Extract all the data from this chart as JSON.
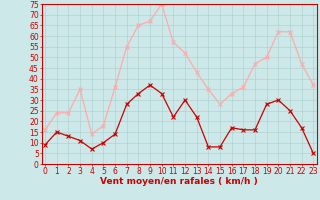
{
  "hours": [
    0,
    1,
    2,
    3,
    4,
    5,
    6,
    7,
    8,
    9,
    10,
    11,
    12,
    13,
    14,
    15,
    16,
    17,
    18,
    19,
    20,
    21,
    22,
    23
  ],
  "wind_avg": [
    9,
    15,
    13,
    11,
    7,
    10,
    14,
    28,
    33,
    37,
    33,
    22,
    30,
    22,
    8,
    8,
    17,
    16,
    16,
    28,
    30,
    25,
    17,
    5
  ],
  "wind_gust": [
    16,
    24,
    24,
    35,
    14,
    18,
    36,
    55,
    65,
    67,
    75,
    57,
    52,
    43,
    35,
    28,
    33,
    36,
    47,
    50,
    62,
    62,
    47,
    37
  ],
  "avg_color": "#cc0000",
  "gust_color": "#ffaaaa",
  "bg_color": "#cce8e8",
  "grid_color": "#aacccc",
  "xlabel": "Vent moyen/en rafales ( km/h )",
  "xlabel_color": "#cc0000",
  "tick_color": "#cc0000",
  "spine_color": "#cc0000",
  "ylim": [
    0,
    75
  ],
  "yticks": [
    0,
    5,
    10,
    15,
    20,
    25,
    30,
    35,
    40,
    45,
    50,
    55,
    60,
    65,
    70,
    75
  ],
  "xticks": [
    0,
    1,
    2,
    3,
    4,
    5,
    6,
    7,
    8,
    9,
    10,
    11,
    12,
    13,
    14,
    15,
    16,
    17,
    18,
    19,
    20,
    21,
    22,
    23
  ],
  "figsize": [
    3.2,
    2.0
  ],
  "dpi": 100,
  "tick_fontsize": 5.5,
  "xlabel_fontsize": 6.5,
  "marker_size": 2.5,
  "linewidth": 0.9
}
